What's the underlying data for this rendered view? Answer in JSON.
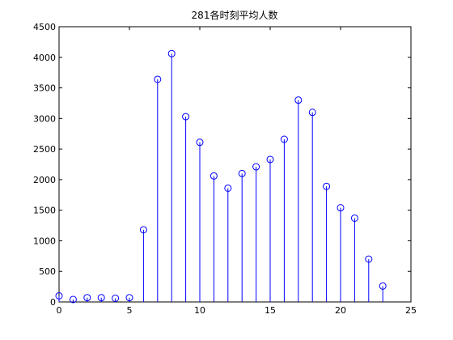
{
  "chart_data": {
    "type": "stem",
    "title": "281各时刻平均人数",
    "xlabel": "",
    "ylabel": "",
    "xlim": [
      0,
      25
    ],
    "ylim": [
      0,
      4500
    ],
    "x_ticks": [
      0,
      5,
      10,
      15,
      20,
      25
    ],
    "y_ticks": [
      0,
      500,
      1000,
      1500,
      2000,
      2500,
      3000,
      3500,
      4000,
      4500
    ],
    "grid": false,
    "series": [
      {
        "color": "#0000ff",
        "marker": "circle",
        "x": [
          0,
          1,
          2,
          3,
          4,
          5,
          6,
          7,
          8,
          9,
          10,
          11,
          12,
          13,
          14,
          15,
          16,
          17,
          18,
          19,
          20,
          21,
          22,
          23
        ],
        "y": [
          100,
          40,
          70,
          70,
          60,
          70,
          1180,
          3640,
          4060,
          3030,
          2610,
          2060,
          1860,
          2100,
          2210,
          2330,
          2660,
          3300,
          3100,
          1890,
          1540,
          1370,
          700,
          260
        ]
      }
    ]
  }
}
